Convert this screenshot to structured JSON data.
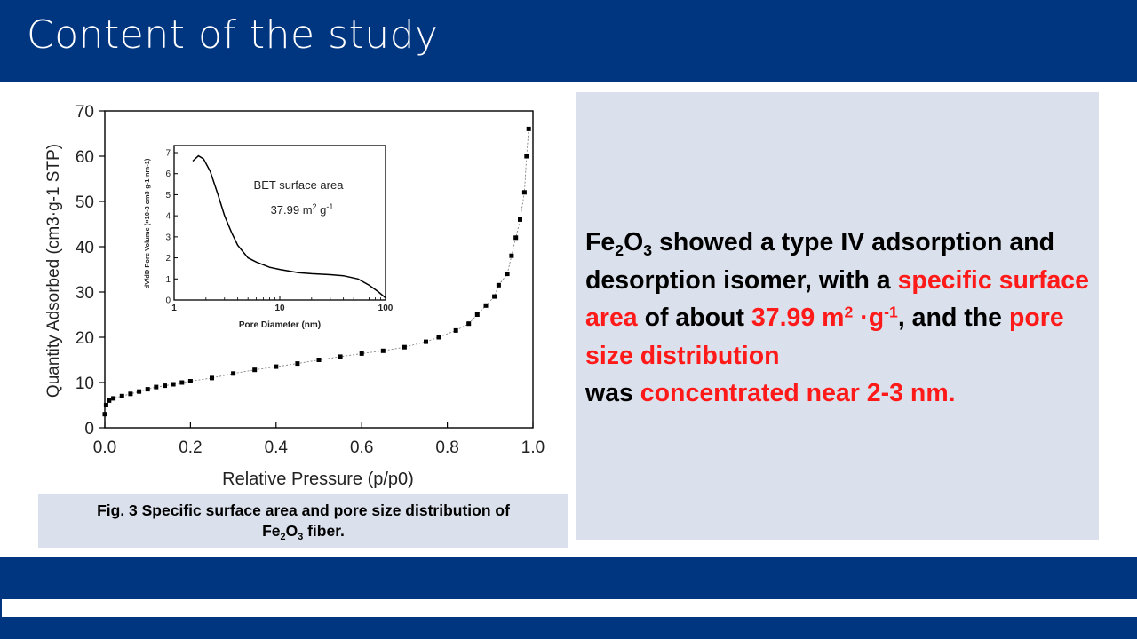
{
  "header": {
    "title": "Content of the study"
  },
  "caption": {
    "prefix": "Fig. 3 Specific surface area and pore size distribution of",
    "formula_fe": "Fe",
    "formula_sub2": "2",
    "formula_o": "O",
    "formula_sub3": "3",
    "suffix": " fiber."
  },
  "panel": {
    "fe": "Fe",
    "sub2": "2",
    "o": "O",
    "sub3": "3",
    "text1": " showed a type IV adsorption and desorption isomer, with a ",
    "hl1": "specific surface area",
    "text2": " of about ",
    "val_num": "37.99 m",
    "val_sup2": "2",
    "val_mid": " ·g",
    "val_sup1": "-1",
    "text3": ", and the ",
    "hl2": "pore size distribution",
    "text4": " was ",
    "hl3": "concentrated near 2-3 nm."
  },
  "colors": {
    "brand": "#003580",
    "panel_bg": "#dbe1ec",
    "highlight": "#ff1a1a"
  },
  "chart_data": [
    {
      "type": "scatter",
      "title": "",
      "xlabel": "Relative Pressure (p/p0)",
      "ylabel": "Quantity Adsorbed (cm3·g-1 STP)",
      "xlim": [
        0.0,
        1.0
      ],
      "ylim": [
        0,
        70
      ],
      "x_ticks": [
        "0.0",
        "0.2",
        "0.4",
        "0.6",
        "0.8",
        "1.0"
      ],
      "y_ticks": [
        "0",
        "10",
        "20",
        "30",
        "40",
        "50",
        "60",
        "70"
      ],
      "series": [
        {
          "x": [
            0.0,
            0.003,
            0.01,
            0.02,
            0.04,
            0.06,
            0.08,
            0.1,
            0.12,
            0.14,
            0.16,
            0.18,
            0.2,
            0.25,
            0.3,
            0.35,
            0.4,
            0.45,
            0.5,
            0.55,
            0.6,
            0.65,
            0.7,
            0.75,
            0.78,
            0.82,
            0.85,
            0.87,
            0.89,
            0.91,
            0.92,
            0.94,
            0.95,
            0.96,
            0.97,
            0.98,
            0.985,
            0.99
          ],
          "y": [
            3,
            5,
            6,
            6.5,
            7,
            7.5,
            8,
            8.5,
            9,
            9.3,
            9.6,
            10,
            10.3,
            11,
            12,
            12.8,
            13.5,
            14.2,
            15,
            15.7,
            16.4,
            17,
            17.8,
            19,
            20,
            21.5,
            23,
            25,
            27,
            29,
            31.5,
            34,
            38,
            42,
            46,
            52,
            60,
            66
          ]
        }
      ]
    },
    {
      "type": "line",
      "title": "",
      "annotation": "BET surface area",
      "annotation_value": "37.99 m",
      "annotation_sup": "2",
      "annotation_unit": " g",
      "annotation_unit_sup": "-1",
      "xlabel": "Pore Diameter (nm)",
      "ylabel": "dV/dD Pore Volume (×10-3 cm3·g-1·nm-1)",
      "x_scale": "log",
      "xlim": [
        1,
        100
      ],
      "ylim": [
        0,
        7
      ],
      "x_ticks": [
        "1",
        "10",
        "100"
      ],
      "y_ticks": [
        "0",
        "1",
        "2",
        "3",
        "4",
        "5",
        "6",
        "7"
      ],
      "series": [
        {
          "x": [
            1.5,
            1.7,
            1.9,
            2.2,
            2.6,
            3.0,
            3.5,
            4.0,
            5.0,
            6.0,
            8.0,
            10,
            15,
            20,
            30,
            40,
            55,
            70,
            85,
            100
          ],
          "y": [
            6.6,
            6.85,
            6.7,
            6.1,
            5.0,
            4.0,
            3.2,
            2.6,
            2.0,
            1.8,
            1.55,
            1.45,
            1.3,
            1.25,
            1.2,
            1.15,
            1.0,
            0.7,
            0.4,
            0.1
          ]
        }
      ]
    }
  ]
}
